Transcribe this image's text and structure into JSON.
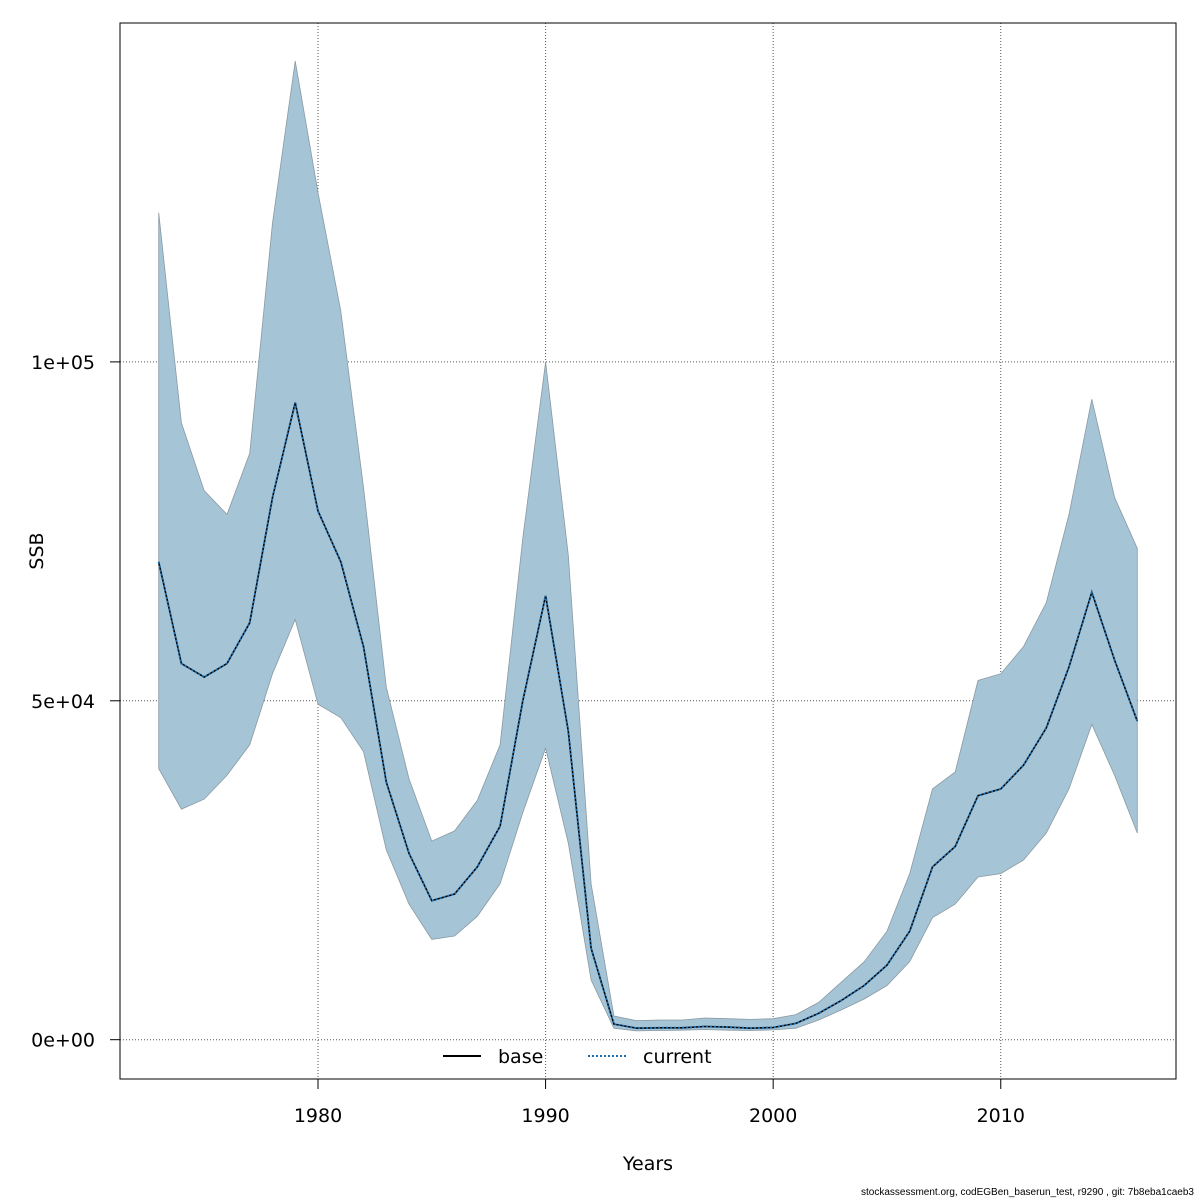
{
  "chart_data": {
    "type": "line",
    "title": "",
    "xlabel": "Years",
    "ylabel": "SSB",
    "xlim": [
      1971.3,
      2017.7
    ],
    "ylim": [
      -5800,
      150000
    ],
    "x_ticks": [
      1980,
      1990,
      2000,
      2010
    ],
    "x_tick_labels": [
      "1980",
      "1990",
      "2000",
      "2010"
    ],
    "y_ticks": [
      0,
      50000,
      100000
    ],
    "y_tick_labels": [
      "0e+00",
      "5e+04",
      "1e+05"
    ],
    "grid": true,
    "legend_position": "bottom-center",
    "colors": {
      "band_fill": "#a5c4d5",
      "band_stroke": "#8a9aa4",
      "base": "#000000",
      "current": "#1f6fb0",
      "grid": "#555555"
    },
    "x": [
      1973,
      1974,
      1975,
      1976,
      1977,
      1978,
      1979,
      1980,
      1981,
      1982,
      1983,
      1984,
      1985,
      1986,
      1987,
      1988,
      1989,
      1990,
      1991,
      1992,
      1993,
      1994,
      1995,
      1996,
      1997,
      1998,
      1999,
      2000,
      2001,
      2002,
      2003,
      2004,
      2005,
      2006,
      2007,
      2008,
      2009,
      2010,
      2011,
      2012,
      2013,
      2014,
      2015,
      2016
    ],
    "band": {
      "upper": [
        122000,
        91000,
        81000,
        77500,
        86500,
        120500,
        144400,
        125000,
        107500,
        81500,
        52000,
        38500,
        29300,
        30800,
        35300,
        43500,
        74000,
        100000,
        71500,
        23000,
        3500,
        2800,
        2900,
        2900,
        3200,
        3100,
        3000,
        3100,
        3700,
        5500,
        8500,
        11500,
        16000,
        24500,
        37000,
        39500,
        53000,
        54000,
        58000,
        64500,
        77500,
        94500,
        80000,
        72500
      ],
      "lower": [
        40000,
        34000,
        35500,
        39000,
        43500,
        54000,
        62000,
        49500,
        47500,
        42500,
        28000,
        20000,
        14800,
        15300,
        18200,
        23000,
        33500,
        43000,
        29000,
        8800,
        1700,
        1300,
        1350,
        1400,
        1500,
        1400,
        1350,
        1450,
        1700,
        2900,
        4400,
        6000,
        8000,
        11500,
        18000,
        20000,
        24000,
        24500,
        26500,
        30500,
        37000,
        46500,
        39000,
        30500
      ]
    },
    "series": [
      {
        "name": "base",
        "style": "solid",
        "values": [
          70500,
          55500,
          53500,
          55500,
          61500,
          80000,
          94000,
          78000,
          70500,
          58000,
          38000,
          27500,
          20500,
          21500,
          25500,
          31500,
          50000,
          65500,
          45500,
          13500,
          2300,
          1700,
          1750,
          1750,
          1950,
          1850,
          1700,
          1800,
          2400,
          3900,
          5800,
          8000,
          11000,
          16000,
          25500,
          28500,
          36000,
          37000,
          40500,
          46000,
          55000,
          66000,
          56000,
          47000
        ]
      },
      {
        "name": "current",
        "style": "dotted",
        "values": [
          70500,
          55500,
          53500,
          55500,
          61500,
          80000,
          94000,
          78000,
          70500,
          58000,
          38000,
          27500,
          20500,
          21500,
          25500,
          31500,
          50000,
          65500,
          45500,
          13500,
          2300,
          1700,
          1750,
          1750,
          1950,
          1850,
          1700,
          1800,
          2400,
          3900,
          5800,
          8000,
          11000,
          16000,
          25500,
          28500,
          36000,
          37000,
          40500,
          46000,
          55000,
          66000,
          56000,
          47000
        ]
      }
    ],
    "legend": [
      {
        "label": "base",
        "style": "solid"
      },
      {
        "label": "current",
        "style": "dotted"
      }
    ]
  },
  "footer_note": "stockassessment.org, codEGBen_baserun_test, r9290 , git: 7b8eba1caeb3"
}
